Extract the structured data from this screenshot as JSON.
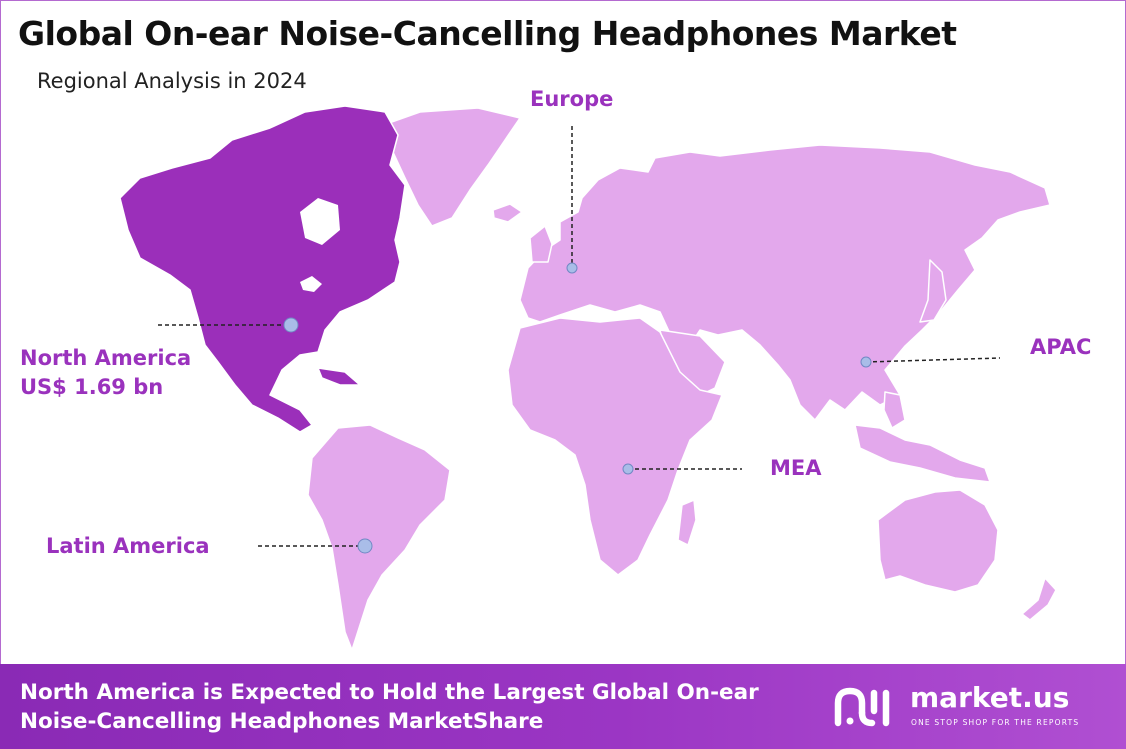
{
  "header": {
    "title": "Global On-ear Noise-Cancelling Headphones Market",
    "subtitle": "Regional Analysis in 2024"
  },
  "regions": {
    "north_america": {
      "name": "North America",
      "value": "US$ 1.69 bn",
      "highlighted": true
    },
    "europe": {
      "name": "Europe"
    },
    "apac": {
      "name": "APAC"
    },
    "mea": {
      "name": "MEA"
    },
    "latin_america": {
      "name": "Latin America"
    }
  },
  "colors": {
    "highlight": "#9b2fba",
    "land": "#e3a8ec",
    "label": "#9a32bd",
    "marker": "#a9bde8",
    "footer": "#8a2ab5"
  },
  "footer": {
    "line1": "North America is Expected to Hold the Largest Global On-ear",
    "line2": "Noise-Cancelling Headphones MarketShare"
  },
  "brand": {
    "name": "market.us",
    "tagline": "ONE STOP SHOP FOR THE REPORTS",
    "logo_icon": "market-us-logo-icon"
  }
}
